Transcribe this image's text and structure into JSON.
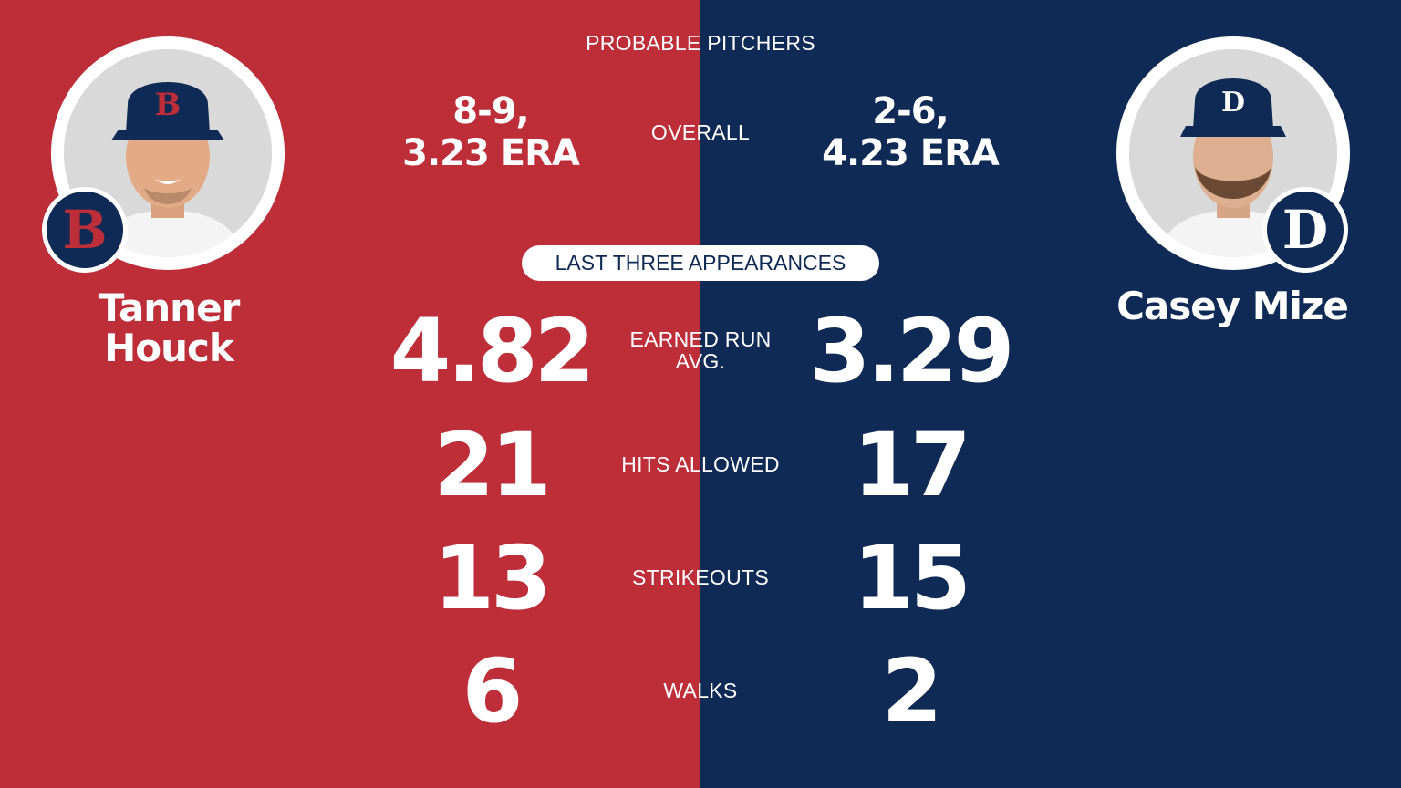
{
  "header": {
    "title": "PROBABLE PITCHERS"
  },
  "home": {
    "name_line1": "Tanner",
    "name_line2": "Houck",
    "record_line1": "8-9,",
    "record_line2": "3.23 ERA",
    "logo_letter": "B",
    "color": "#bd2e38"
  },
  "away": {
    "name": "Casey Mize",
    "record_line1": "2-6,",
    "record_line2": "4.23 ERA",
    "logo_letter": "D",
    "color": "#0e2a55"
  },
  "labels": {
    "overall": "OVERALL",
    "section": "LAST THREE APPEARANCES",
    "era_line1": "EARNED RUN",
    "era_line2": "AVG.",
    "hits": "HITS ALLOWED",
    "strikeouts": "STRIKEOUTS",
    "walks": "WALKS"
  },
  "stats": {
    "home": {
      "era": "4.82",
      "hits": "21",
      "strikeouts": "13",
      "walks": "6"
    },
    "away": {
      "era": "3.29",
      "hits": "17",
      "strikeouts": "15",
      "walks": "2"
    }
  }
}
